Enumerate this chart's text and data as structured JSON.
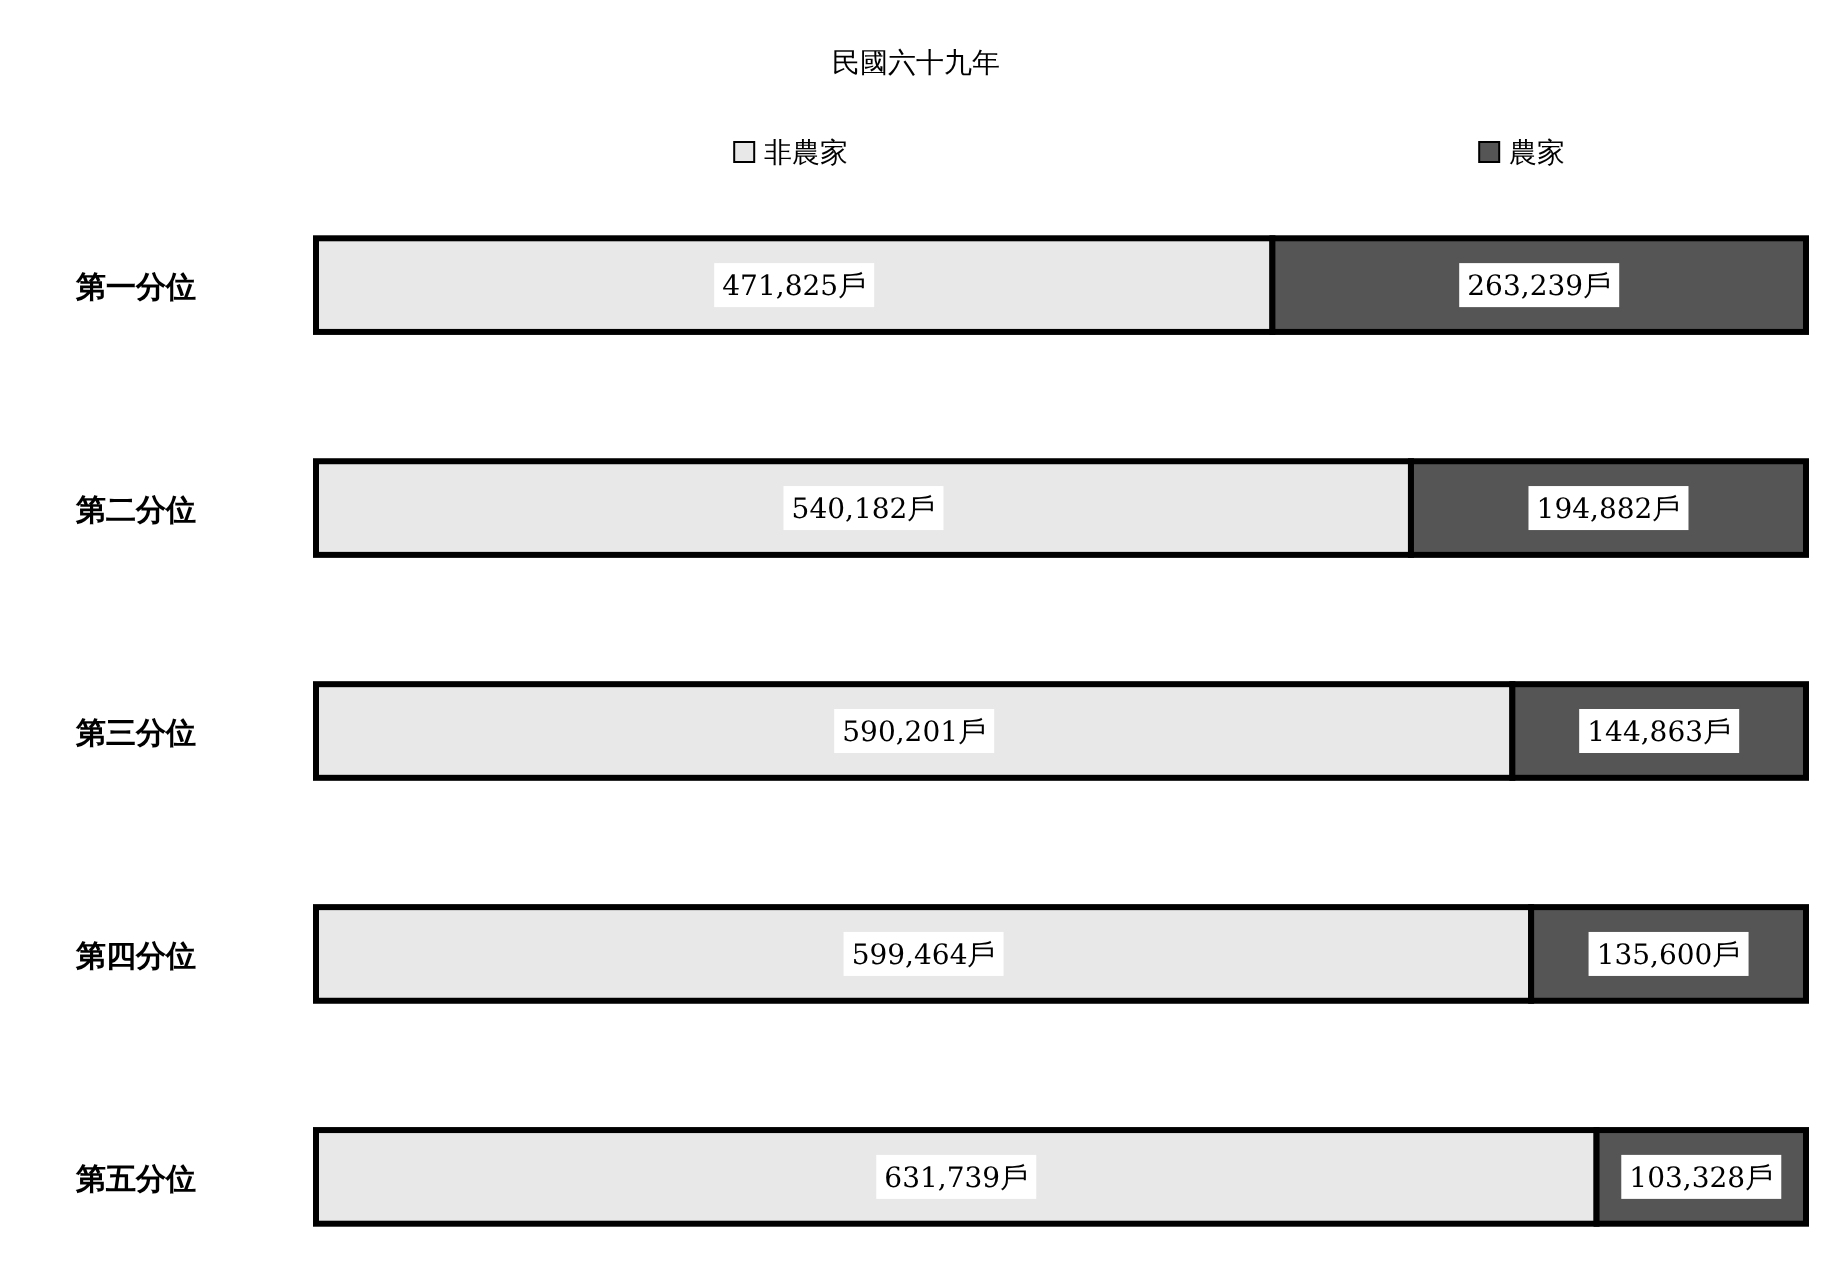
{
  "chart_data": {
    "type": "bar",
    "orientation": "horizontal",
    "stacked": true,
    "title": "民國六十九年",
    "legend": "top",
    "categories": [
      "第一分位",
      "第二分位",
      "第三分位",
      "第四分位",
      "第五分位"
    ],
    "series": [
      {
        "name": "非農家",
        "color": "#e8e8e8",
        "values": [
          471825,
          540182,
          590201,
          599464,
          631739
        ],
        "value_labels": [
          "471,825戶",
          "540,182戶",
          "590,201戶",
          "599,464戶",
          "631,739戶"
        ]
      },
      {
        "name": "農家",
        "color": "#555555",
        "values": [
          263239,
          194882,
          144863,
          135600,
          103328
        ],
        "value_labels": [
          "263,239戶",
          "194,882戶",
          "144,863戶",
          "135,600戶",
          "103,328戶"
        ]
      }
    ]
  }
}
